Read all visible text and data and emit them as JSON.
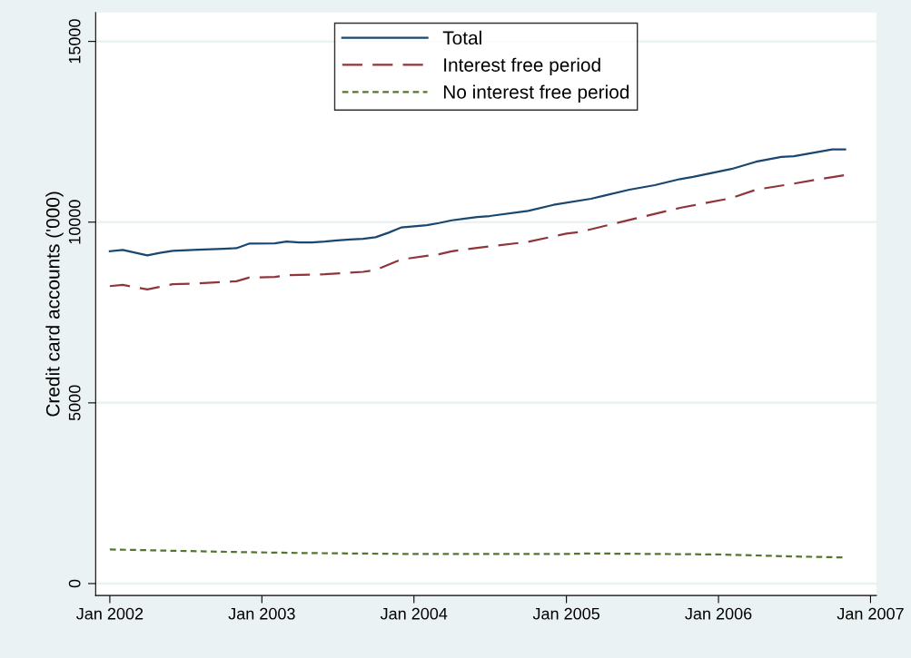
{
  "chart_data": {
    "type": "line",
    "ylabel": "Credit card accounts ('000)",
    "xlim": [
      "2001-11-28",
      "2007-01-15"
    ],
    "ylim": [
      -330,
      15800
    ],
    "xticks": [
      {
        "value": "2002-01",
        "label": "Jan 2002"
      },
      {
        "value": "2003-01",
        "label": "Jan 2003"
      },
      {
        "value": "2004-01",
        "label": "Jan 2004"
      },
      {
        "value": "2005-01",
        "label": "Jan 2005"
      },
      {
        "value": "2006-01",
        "label": "Jan 2006"
      },
      {
        "value": "2007-01",
        "label": "Jan 2007"
      }
    ],
    "yticks": [
      0,
      5000,
      10000,
      15000
    ],
    "grid": "y",
    "legend": "top",
    "marker": "none",
    "series": [
      {
        "name": "Total",
        "color": "#1a476f",
        "line_style": "solid",
        "x": [
          "2002-01",
          "2002-02",
          "2002-04",
          "2002-05",
          "2002-06",
          "2002-08",
          "2002-10",
          "2002-11",
          "2002-12",
          "2003-02",
          "2003-03",
          "2003-04",
          "2003-05",
          "2003-06",
          "2003-07",
          "2003-08",
          "2003-09",
          "2003-10",
          "2003-11",
          "2003-12",
          "2004-02",
          "2004-03",
          "2004-04",
          "2004-06",
          "2004-07",
          "2004-10",
          "2004-12",
          "2005-03",
          "2005-04",
          "2005-06",
          "2005-08",
          "2005-10",
          "2005-11",
          "2006-02",
          "2006-04",
          "2006-06",
          "2006-07",
          "2006-10",
          "2006-11"
        ],
        "values": [
          9195,
          9230,
          9080,
          9150,
          9205,
          9240,
          9262,
          9280,
          9405,
          9413,
          9464,
          9439,
          9439,
          9464,
          9497,
          9522,
          9540,
          9582,
          9708,
          9850,
          9917,
          9975,
          10050,
          10143,
          10169,
          10312,
          10478,
          10647,
          10730,
          10898,
          11024,
          11192,
          11251,
          11470,
          11671,
          11805,
          11822,
          12014,
          12014
        ]
      },
      {
        "name": "Interest free period",
        "color": "#90353b",
        "line_style": "dashed",
        "x": [
          "2002-01",
          "2002-02",
          "2002-04",
          "2002-06",
          "2002-08",
          "2002-11",
          "2002-12",
          "2003-02",
          "2003-03",
          "2003-06",
          "2003-09",
          "2003-10",
          "2003-12",
          "2004-03",
          "2004-04",
          "2004-06",
          "2004-10",
          "2005-01",
          "2005-02",
          "2005-05",
          "2005-10",
          "2006-02",
          "2006-04",
          "2006-07",
          "2006-09",
          "2006-11"
        ],
        "values": [
          8230,
          8264,
          8138,
          8281,
          8306,
          8365,
          8465,
          8482,
          8532,
          8558,
          8625,
          8676,
          8968,
          9112,
          9195,
          9288,
          9455,
          9682,
          9723,
          9975,
          10395,
          10665,
          10898,
          11066,
          11192,
          11301
        ]
      },
      {
        "name": "No interest free period",
        "color": "#55752f",
        "line_style": "dotted",
        "x": [
          "2002-01",
          "2002-07",
          "2002-11",
          "2003-04",
          "2004-01",
          "2004-08",
          "2005-01",
          "2005-03",
          "2006-01",
          "2006-07",
          "2006-11"
        ],
        "values": [
          944,
          901,
          873,
          846,
          818,
          818,
          818,
          833,
          805,
          750,
          722
        ]
      }
    ]
  }
}
